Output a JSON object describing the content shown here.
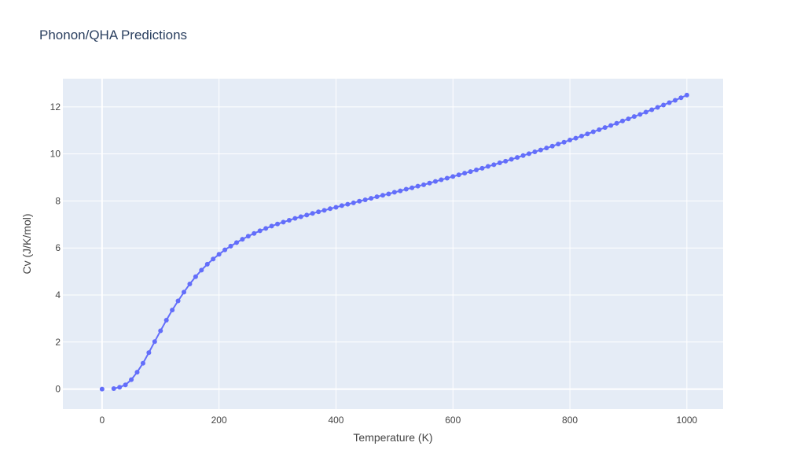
{
  "chart_data": {
    "type": "line",
    "title": "Phonon/QHA Predictions",
    "xlabel": "Temperature (K)",
    "ylabel": "Cv (J/K/mol)",
    "xlim": [
      -67,
      1062
    ],
    "ylim": [
      -0.85,
      13.2
    ],
    "xticks": [
      0,
      200,
      400,
      600,
      800,
      1000
    ],
    "yticks": [
      0,
      2,
      4,
      6,
      8,
      10,
      12
    ],
    "grid": true,
    "legend": "none",
    "colors": {
      "plot_bg": "#e5ecf6",
      "grid": "#ffffff",
      "series": "#636efa"
    },
    "isolated_point": {
      "x": 0,
      "y": 0
    },
    "series": [
      {
        "mode": "lines+markers",
        "x": [
          20,
          30,
          40,
          50,
          60,
          70,
          80,
          90,
          100,
          110,
          120,
          130,
          140,
          150,
          160,
          170,
          180,
          190,
          200,
          210,
          220,
          230,
          240,
          250,
          260,
          270,
          280,
          290,
          300,
          310,
          320,
          330,
          340,
          350,
          360,
          370,
          380,
          390,
          400,
          410,
          420,
          430,
          440,
          450,
          460,
          470,
          480,
          490,
          500,
          510,
          520,
          530,
          540,
          550,
          560,
          570,
          580,
          590,
          600,
          610,
          620,
          630,
          640,
          650,
          660,
          670,
          680,
          690,
          700,
          710,
          720,
          730,
          740,
          750,
          760,
          770,
          780,
          790,
          800,
          810,
          820,
          830,
          840,
          850,
          860,
          870,
          880,
          890,
          900,
          910,
          920,
          930,
          940,
          950,
          960,
          970,
          980,
          990,
          1000
        ],
        "y": [
          0.02,
          0.08,
          0.18,
          0.4,
          0.72,
          1.1,
          1.55,
          2.02,
          2.48,
          2.93,
          3.36,
          3.75,
          4.12,
          4.47,
          4.78,
          5.06,
          5.31,
          5.53,
          5.73,
          5.92,
          6.08,
          6.23,
          6.37,
          6.5,
          6.62,
          6.73,
          6.83,
          6.93,
          7.02,
          7.1,
          7.18,
          7.26,
          7.33,
          7.4,
          7.47,
          7.54,
          7.6,
          7.67,
          7.73,
          7.8,
          7.86,
          7.92,
          7.99,
          8.05,
          8.11,
          8.18,
          8.24,
          8.3,
          8.37,
          8.43,
          8.5,
          8.56,
          8.63,
          8.69,
          8.76,
          8.83,
          8.9,
          8.97,
          9.04,
          9.11,
          9.18,
          9.25,
          9.32,
          9.39,
          9.47,
          9.54,
          9.62,
          9.69,
          9.77,
          9.85,
          9.93,
          10.01,
          10.09,
          10.17,
          10.25,
          10.33,
          10.42,
          10.5,
          10.59,
          10.67,
          10.76,
          10.85,
          10.94,
          11.03,
          11.12,
          11.21,
          11.3,
          11.4,
          11.49,
          11.59,
          11.68,
          11.78,
          11.88,
          11.98,
          12.08,
          12.18,
          12.28,
          12.39,
          12.5
        ]
      }
    ]
  }
}
